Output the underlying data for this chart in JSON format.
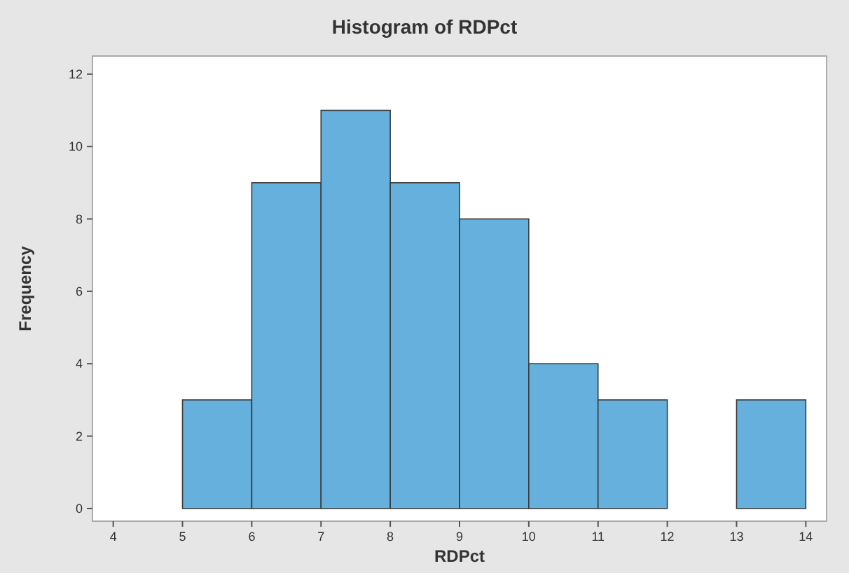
{
  "chart_data": {
    "type": "histogram",
    "title": "Histogram of RDPct",
    "xlabel": "RDPct",
    "ylabel": "Frequency",
    "bins": [
      5,
      6,
      7,
      8,
      9,
      10,
      11,
      12,
      13,
      14
    ],
    "values": [
      3,
      9,
      11,
      9,
      8,
      4,
      3,
      0,
      3
    ],
    "color": "#65b0dd",
    "xlim": [
      3.7,
      14.3
    ],
    "xticks": [
      4,
      5,
      6,
      7,
      8,
      9,
      10,
      11,
      12,
      13,
      14
    ],
    "ylim": [
      -0.35,
      12.5
    ],
    "yticks": [
      0,
      2,
      4,
      6,
      8,
      10,
      12
    ],
    "grid": false
  }
}
